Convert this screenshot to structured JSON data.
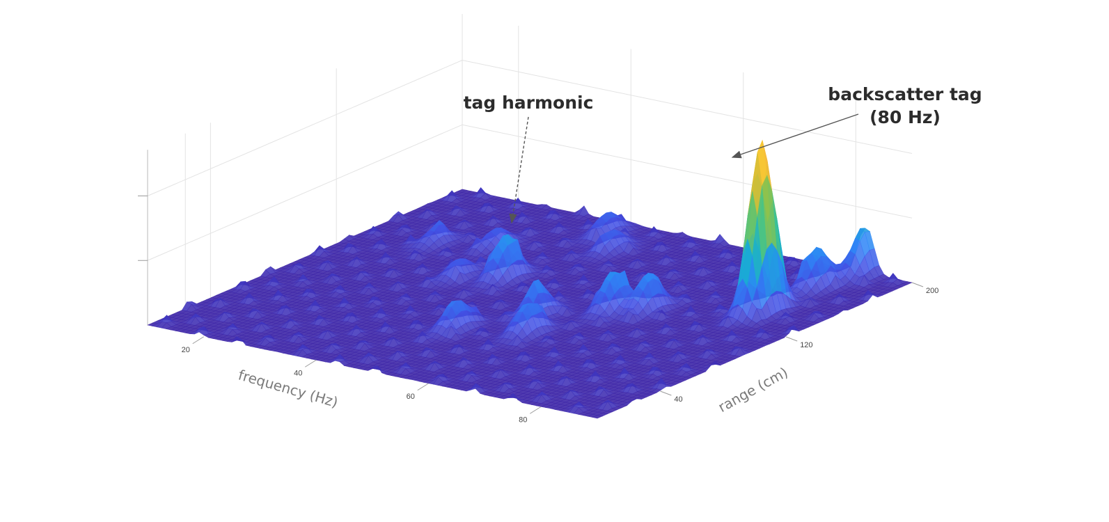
{
  "chart_data": {
    "type": "surface",
    "title": "",
    "xlabel": "frequency (Hz)",
    "ylabel": "range (cm)",
    "zlabel": "",
    "x_ticks": [
      20,
      40,
      60,
      80
    ],
    "y_ticks": [
      40,
      120,
      200
    ],
    "x_tick_labels": [
      "20",
      "40",
      "60",
      "80"
    ],
    "y_tick_labels": [
      "40",
      "120",
      "200"
    ],
    "xlim": [
      10,
      90
    ],
    "ylim": [
      0,
      200
    ],
    "zlim": [
      0,
      1
    ],
    "z_tick_count": 3,
    "grid": true,
    "colormap": [
      "#3e26a8",
      "#4352e6",
      "#2e87f7",
      "#17b1cf",
      "#41c48c",
      "#b3c22f",
      "#f7ba3c",
      "#f9fb15"
    ],
    "peaks": [
      {
        "x": 80,
        "y": 140,
        "z": 0.93,
        "note": "backscatter tag"
      },
      {
        "x": 40,
        "y": 120,
        "z": 0.24,
        "note": "tag harmonic"
      },
      {
        "x": 80,
        "y": 175,
        "z": 0.22
      },
      {
        "x": 82,
        "y": 198,
        "z": 0.26
      },
      {
        "x": 62,
        "y": 110,
        "z": 0.22
      },
      {
        "x": 66,
        "y": 118,
        "z": 0.2
      },
      {
        "x": 54,
        "y": 90,
        "z": 0.17
      },
      {
        "x": 48,
        "y": 60,
        "z": 0.16
      },
      {
        "x": 58,
        "y": 70,
        "z": 0.17
      },
      {
        "x": 45,
        "y": 170,
        "z": 0.11
      },
      {
        "x": 40,
        "y": 185,
        "z": 0.12
      },
      {
        "x": 30,
        "y": 150,
        "z": 0.1
      },
      {
        "x": 22,
        "y": 140,
        "z": 0.09
      },
      {
        "x": 34,
        "y": 112,
        "z": 0.1
      }
    ]
  },
  "annotations": {
    "tag_harmonic": "tag harmonic",
    "backscatter_line1": "backscatter tag",
    "backscatter_line2": "(80 Hz)"
  }
}
